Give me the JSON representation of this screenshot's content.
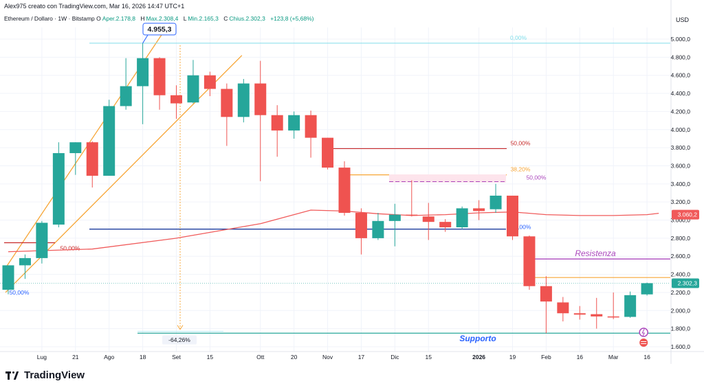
{
  "header": {
    "credit": "Alex975 creato con TradingView.com, Mar 16, 2026 14:47 UTC+1",
    "symbol": "Ethereum / Dollaro · 1W · Bitstamp",
    "open_label": "O",
    "open_value": "Aper.2.178,8",
    "high_label": "H",
    "high_value": "Max.2.308,4",
    "low_label": "L",
    "low_value": "Min.2.165,3",
    "close_label": "C",
    "close_value": "Chius.2.302,3",
    "change_value": "+123,8 (+5,68%)"
  },
  "currency": "USD",
  "logo_text": "TradingView",
  "colors": {
    "up": "#26a69a",
    "down": "#ef5350",
    "ma": "#f05a5a",
    "channel": "#f7a535",
    "blue": "#2962ff",
    "fib_red": "#c62828",
    "purple": "#ab47bc",
    "support": "#26a69a"
  },
  "chart_data": {
    "type": "candlestick",
    "ylim": [
      1600,
      5250
    ],
    "y_ticks": [
      "5.000,0",
      "4.800,0",
      "4.600,0",
      "4.400,0",
      "4.200,0",
      "4.000,0",
      "3.800,0",
      "3.600,0",
      "3.400,0",
      "3.200,0",
      "3.000,0",
      "2.800,0",
      "2.600,0",
      "2.400,0",
      "2.200,0",
      "2.000,0",
      "1.800,0",
      "1.600,0"
    ],
    "y_tick_values": [
      5000,
      4800,
      4600,
      4400,
      4200,
      4000,
      3800,
      3600,
      3400,
      3200,
      3000,
      2800,
      2600,
      2400,
      2200,
      2000,
      1800,
      1600
    ],
    "x_ticks": [
      {
        "label": "Lug",
        "week": 2
      },
      {
        "label": "21",
        "week": 4
      },
      {
        "label": "Ago",
        "week": 6
      },
      {
        "label": "18",
        "week": 8
      },
      {
        "label": "Set",
        "week": 10
      },
      {
        "label": "15",
        "week": 12
      },
      {
        "label": "Ott",
        "week": 15
      },
      {
        "label": "20",
        "week": 17
      },
      {
        "label": "Nov",
        "week": 19
      },
      {
        "label": "17",
        "week": 21
      },
      {
        "label": "Dic",
        "week": 23
      },
      {
        "label": "15",
        "week": 25
      },
      {
        "label": "2026",
        "week": 28
      },
      {
        "label": "19",
        "week": 30
      },
      {
        "label": "Feb",
        "week": 32
      },
      {
        "label": "16",
        "week": 34
      },
      {
        "label": "Mar",
        "week": 36
      },
      {
        "label": "16",
        "week": 38
      }
    ],
    "candles": [
      {
        "o": 2230,
        "h": 2500,
        "l": 2180,
        "c": 2500
      },
      {
        "o": 2500,
        "h": 2620,
        "l": 2350,
        "c": 2580
      },
      {
        "o": 2580,
        "h": 2990,
        "l": 2520,
        "c": 2970
      },
      {
        "o": 2950,
        "h": 3860,
        "l": 2920,
        "c": 3740
      },
      {
        "o": 3740,
        "h": 3860,
        "l": 3500,
        "c": 3860
      },
      {
        "o": 3860,
        "h": 3870,
        "l": 3360,
        "c": 3490
      },
      {
        "o": 3490,
        "h": 4330,
        "l": 3490,
        "c": 4260
      },
      {
        "o": 4260,
        "h": 4790,
        "l": 4220,
        "c": 4480
      },
      {
        "o": 4480,
        "h": 4955,
        "l": 4060,
        "c": 4790
      },
      {
        "o": 4790,
        "h": 4800,
        "l": 4220,
        "c": 4380
      },
      {
        "o": 4380,
        "h": 4490,
        "l": 4120,
        "c": 4290
      },
      {
        "o": 4300,
        "h": 4770,
        "l": 4290,
        "c": 4600
      },
      {
        "o": 4600,
        "h": 4640,
        "l": 4370,
        "c": 4450
      },
      {
        "o": 4450,
        "h": 4510,
        "l": 3820,
        "c": 4140
      },
      {
        "o": 4140,
        "h": 4560,
        "l": 4080,
        "c": 4510
      },
      {
        "o": 4510,
        "h": 4760,
        "l": 3430,
        "c": 4160
      },
      {
        "o": 4160,
        "h": 4270,
        "l": 3700,
        "c": 3990
      },
      {
        "o": 3990,
        "h": 4200,
        "l": 3900,
        "c": 4160
      },
      {
        "o": 4160,
        "h": 4210,
        "l": 3690,
        "c": 3910
      },
      {
        "o": 3910,
        "h": 3910,
        "l": 3560,
        "c": 3580
      },
      {
        "o": 3580,
        "h": 3650,
        "l": 3050,
        "c": 3080
      },
      {
        "o": 3080,
        "h": 3130,
        "l": 2620,
        "c": 2800
      },
      {
        "o": 2800,
        "h": 3080,
        "l": 2780,
        "c": 2990
      },
      {
        "o": 2990,
        "h": 3180,
        "l": 2710,
        "c": 3060
      },
      {
        "o": 3060,
        "h": 3440,
        "l": 3040,
        "c": 3050
      },
      {
        "o": 3040,
        "h": 3190,
        "l": 2780,
        "c": 2980
      },
      {
        "o": 2980,
        "h": 3010,
        "l": 2870,
        "c": 2920
      },
      {
        "o": 2920,
        "h": 3150,
        "l": 2900,
        "c": 3130
      },
      {
        "o": 3130,
        "h": 3220,
        "l": 3000,
        "c": 3100
      },
      {
        "o": 3120,
        "h": 3400,
        "l": 3080,
        "c": 3270
      },
      {
        "o": 3270,
        "h": 3270,
        "l": 2780,
        "c": 2820
      },
      {
        "o": 2820,
        "h": 2830,
        "l": 2230,
        "c": 2270
      },
      {
        "o": 2270,
        "h": 2380,
        "l": 1750,
        "c": 2100
      },
      {
        "o": 2090,
        "h": 2150,
        "l": 1880,
        "c": 1970
      },
      {
        "o": 1970,
        "h": 2050,
        "l": 1900,
        "c": 1955
      },
      {
        "o": 1960,
        "h": 2140,
        "l": 1800,
        "c": 1935
      },
      {
        "o": 1935,
        "h": 2200,
        "l": 1905,
        "c": 1930
      },
      {
        "o": 1930,
        "h": 2210,
        "l": 1920,
        "c": 2170
      },
      {
        "o": 2178.8,
        "h": 2308.4,
        "l": 2165.3,
        "c": 2302.3
      }
    ],
    "moving_average": [
      [
        0,
        2650
      ],
      [
        5,
        2680
      ],
      [
        10,
        2800
      ],
      [
        15,
        2960
      ],
      [
        18,
        3110
      ],
      [
        20,
        3100
      ],
      [
        22,
        3070
      ],
      [
        24,
        3050
      ],
      [
        26,
        3060
      ],
      [
        28,
        3080
      ],
      [
        30,
        3090
      ],
      [
        32,
        3060
      ],
      [
        34,
        3050
      ],
      [
        36,
        3050
      ],
      [
        38,
        3060
      ],
      [
        38.7,
        3075
      ]
    ],
    "annotations": {
      "peak_label": "4.955,3",
      "fib_top": "0,00%",
      "fib_50_red": "50,00%",
      "fib_382": "38,20%",
      "fib_50_purple": "50,00%",
      "fib_50_blue_left": "50,00%",
      "fib_50_blue_right": "50,00%",
      "fib_50_left_red": "50,00%",
      "drop_percent": "-64,26%",
      "resistance_label": "Resistenza",
      "support_label": "Supporto"
    },
    "price_tags": [
      {
        "value": 3060.2,
        "label": "3.060,2",
        "color": "#f05a5a"
      },
      {
        "value": 2302.3,
        "label": "2.302,3",
        "color": "#26a69a"
      }
    ]
  }
}
